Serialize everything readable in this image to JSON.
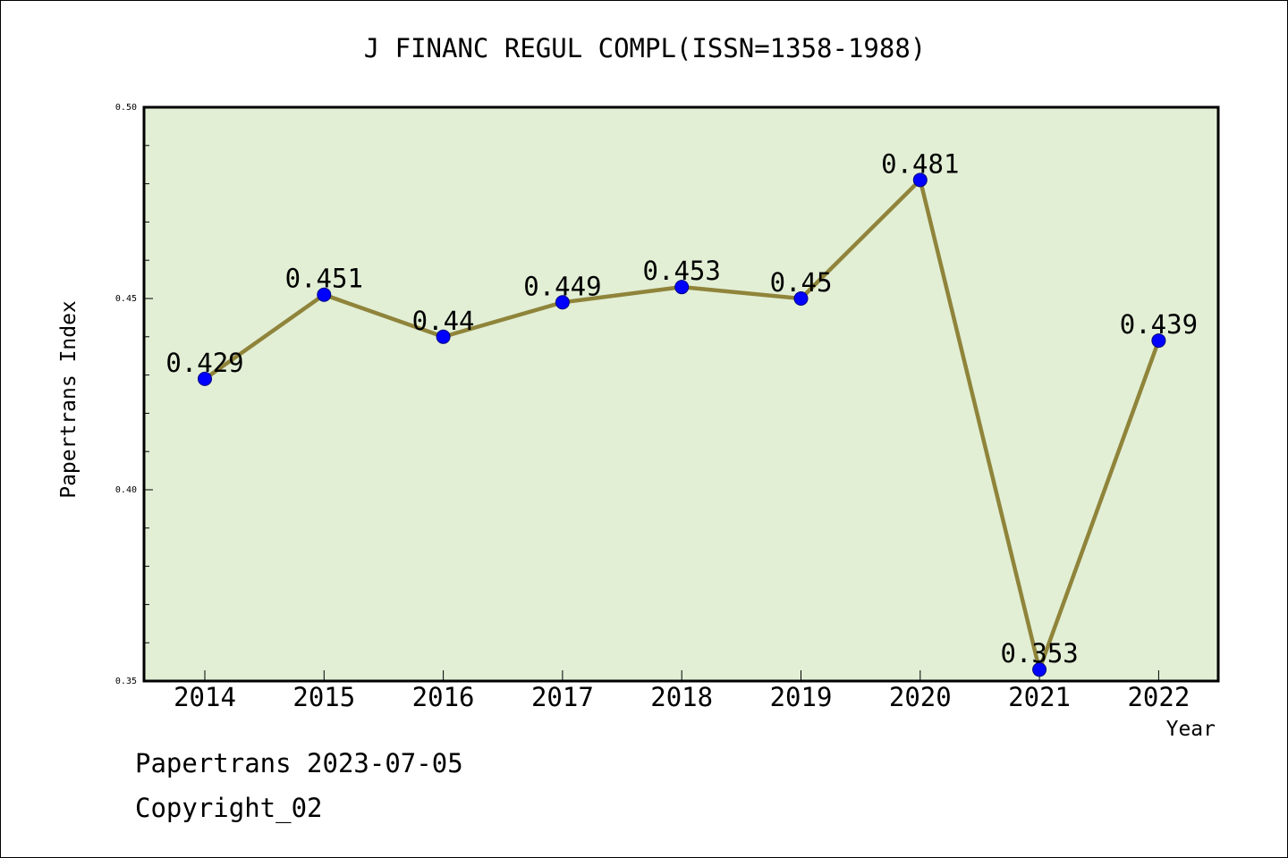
{
  "chart_data": {
    "type": "line",
    "title": "J FINANC REGUL COMPL(ISSN=1358-1988)",
    "xlabel": "Year",
    "ylabel": "Papertrans Index",
    "categories": [
      "2014",
      "2015",
      "2016",
      "2017",
      "2018",
      "2019",
      "2020",
      "2021",
      "2022"
    ],
    "values": [
      0.429,
      0.451,
      0.44,
      0.449,
      0.453,
      0.45,
      0.481,
      0.353,
      0.439
    ],
    "data_labels": [
      "0.429",
      "0.451",
      "0.44",
      "0.449",
      "0.453",
      "0.45",
      "0.481",
      "0.353",
      "0.439"
    ],
    "ylim": [
      0.35,
      0.5
    ],
    "yticks": [
      "0.50",
      "0.45",
      "0.40",
      "0.35"
    ],
    "grid": false,
    "colors": {
      "plot_background": "#e2efd5",
      "line": "#8f843a",
      "marker": "#0000ff"
    }
  },
  "footer": {
    "source": "Papertrans 2023-07-05",
    "copyright": "Copyright_02"
  }
}
